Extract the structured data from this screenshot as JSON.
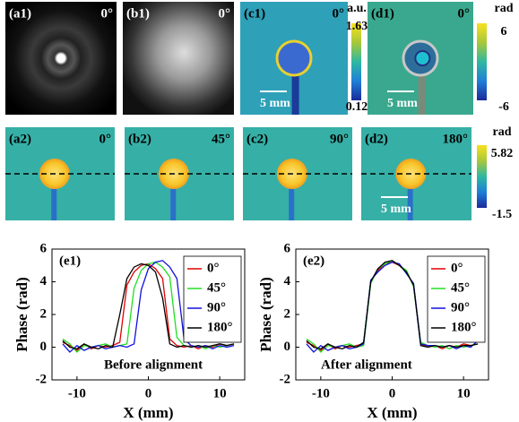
{
  "panels": [
    {
      "label": "(a1)",
      "angle": "0°"
    },
    {
      "label": "(b1)",
      "angle": "0°"
    },
    {
      "label": "(c1)",
      "angle": "0°",
      "scale_bar": "5 mm"
    },
    {
      "label": "(d1)",
      "angle": "0°",
      "scale_bar": "5 mm"
    },
    {
      "label": "(a2)",
      "angle": "0°"
    },
    {
      "label": "(b2)",
      "angle": "45°"
    },
    {
      "label": "(c2)",
      "angle": "90°"
    },
    {
      "label": "(d2)",
      "angle": "180°",
      "scale_bar": "5 mm"
    }
  ],
  "colorbars": [
    {
      "unit": "a.u.",
      "max": 1.63,
      "min": 0.12
    },
    {
      "unit": "rad",
      "max": 6,
      "min": -6
    },
    {
      "unit": "rad",
      "max": 5.82,
      "min": -1.5
    }
  ],
  "chart_data": [
    {
      "type": "line",
      "label": "(e1)",
      "annotation": "Before alignment",
      "x_label": "X (mm)",
      "y_label": "Phase (rad)",
      "xlim": [
        -13.5,
        13.5
      ],
      "ylim": [
        -2,
        6
      ],
      "xticks": [
        -10,
        0,
        10
      ],
      "yticks": [
        -2,
        0,
        2,
        4,
        6
      ],
      "x": [
        -12,
        -11,
        -10,
        -9,
        -8,
        -7,
        -6,
        -5,
        -4,
        -3,
        -2,
        -1,
        0,
        1,
        2,
        3,
        4,
        5,
        6,
        7,
        8,
        9,
        10,
        11,
        12
      ],
      "series": [
        {
          "name": "0°",
          "color": "#e00000",
          "values": [
            0.3,
            0.1,
            -0.2,
            0.2,
            -0.1,
            0.1,
            0,
            0.1,
            0.3,
            3.8,
            4.6,
            5.0,
            5.1,
            4.8,
            4.2,
            0.5,
            0.1,
            0.0,
            0.1,
            -0.1,
            0.1,
            0,
            0.2,
            0.1,
            0.2
          ]
        },
        {
          "name": "45°",
          "color": "#22dd22",
          "values": [
            0.5,
            0.2,
            -0.3,
            0.1,
            0,
            0.1,
            0.2,
            0,
            0.1,
            0.2,
            3.6,
            4.7,
            5.1,
            5.2,
            4.9,
            4.3,
            0.6,
            0.1,
            0,
            0.1,
            -0.1,
            0.1,
            0,
            0.1,
            0.2
          ]
        },
        {
          "name": "90°",
          "color": "#1010dd",
          "values": [
            0.2,
            -0.3,
            0.1,
            -0.2,
            0,
            0.1,
            -0.1,
            0,
            0.1,
            0.0,
            0.2,
            3.5,
            4.8,
            5.2,
            5.3,
            4.9,
            4.2,
            0.5,
            0.1,
            0,
            0.1,
            -0.1,
            0.1,
            0,
            0.1
          ]
        },
        {
          "name": "180°",
          "color": "#000000",
          "values": [
            0.4,
            0,
            -0.1,
            0.2,
            0,
            -0.1,
            0.1,
            0,
            2.0,
            4.2,
            4.9,
            5.1,
            5.0,
            4.6,
            3.0,
            0.2,
            0,
            0.1,
            0,
            0.1,
            0,
            0.1,
            0.2,
            0.1,
            0.2
          ]
        }
      ]
    },
    {
      "type": "line",
      "label": "(e2)",
      "annotation": "After alignment",
      "x_label": "X (mm)",
      "y_label": "Phase (rad)",
      "xlim": [
        -13.5,
        13.5
      ],
      "ylim": [
        -2,
        6
      ],
      "xticks": [
        -10,
        0,
        10
      ],
      "yticks": [
        -2,
        0,
        2,
        4,
        6
      ],
      "x": [
        -12,
        -11,
        -10,
        -9,
        -8,
        -7,
        -6,
        -5,
        -4,
        -3,
        -2,
        -1,
        0,
        1,
        2,
        3,
        4,
        5,
        6,
        7,
        8,
        9,
        10,
        11,
        12
      ],
      "series": [
        {
          "name": "0°",
          "color": "#e00000",
          "values": [
            0.3,
            0.1,
            -0.2,
            0.2,
            -0.1,
            0.1,
            0,
            0.1,
            0.2,
            4.0,
            4.7,
            5.1,
            5.2,
            5.0,
            4.6,
            3.8,
            0.2,
            0.0,
            0.1,
            -0.1,
            0.1,
            0,
            0.2,
            0.1,
            0.2
          ]
        },
        {
          "name": "45°",
          "color": "#22dd22",
          "values": [
            0.5,
            0.2,
            -0.3,
            0.1,
            0,
            0.1,
            0.2,
            0,
            0.1,
            3.9,
            4.8,
            5.1,
            5.3,
            5.0,
            4.7,
            3.7,
            0.3,
            0.1,
            0,
            0.1,
            -0.1,
            0.1,
            0,
            0.1,
            0.2
          ]
        },
        {
          "name": "90°",
          "color": "#1010dd",
          "values": [
            0.2,
            -0.3,
            0.1,
            -0.2,
            0,
            0.1,
            -0.1,
            0,
            0.2,
            4.1,
            4.6,
            5.0,
            5.2,
            5.1,
            4.5,
            3.9,
            0.2,
            0.1,
            0.1,
            0,
            0.1,
            -0.1,
            0.1,
            0,
            0.4
          ]
        },
        {
          "name": "180°",
          "color": "#000000",
          "values": [
            0.4,
            0,
            -0.1,
            0.2,
            0,
            -0.1,
            0.1,
            0,
            0.3,
            4.0,
            4.8,
            5.2,
            5.3,
            5.0,
            4.6,
            3.8,
            0.1,
            0,
            0.1,
            0,
            0.1,
            0,
            0.1,
            0.1,
            0.2
          ]
        }
      ]
    }
  ]
}
